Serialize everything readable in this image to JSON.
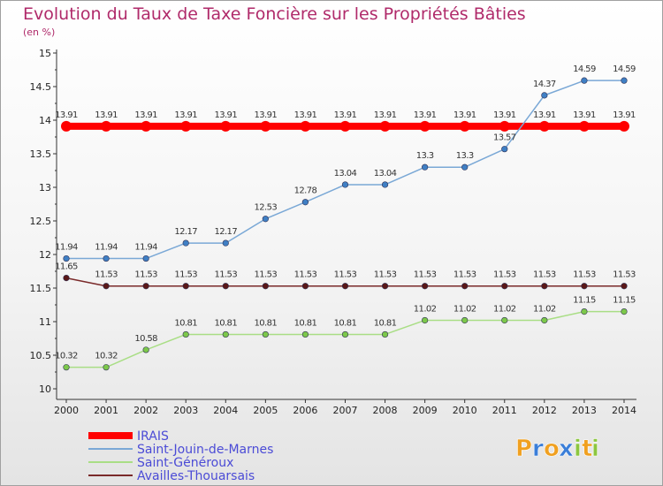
{
  "chart_data": {
    "type": "line",
    "title": "Evolution du Taux de Taxe Foncière sur les Propriétés Bâties",
    "subtitle": "(en %)",
    "x": [
      "2000",
      "2001",
      "2002",
      "2003",
      "2004",
      "2005",
      "2006",
      "2007",
      "2008",
      "2009",
      "2010",
      "2011",
      "2012",
      "2013",
      "2014"
    ],
    "yticks": [
      "10",
      "10.5",
      "11",
      "11.5",
      "12",
      "12.5",
      "13",
      "13.5",
      "14",
      "14.5",
      "15"
    ],
    "ylim": [
      10,
      15
    ],
    "grid": false,
    "legend_position": "bottom-left",
    "series": [
      {
        "name": "IRAIS",
        "color": "#ff0000",
        "width": 8,
        "point_color": "#ff0000",
        "values": [
          13.91,
          13.91,
          13.91,
          13.91,
          13.91,
          13.91,
          13.91,
          13.91,
          13.91,
          13.91,
          13.91,
          13.91,
          13.91,
          13.91,
          13.91
        ],
        "labels": [
          "13.91",
          "13.91",
          "13.91",
          "13.91",
          "13.91",
          "13.91",
          "13.91",
          "13.91",
          "13.91",
          "13.91",
          "13.91",
          "13.91",
          "13.91",
          "13.91",
          "13.91"
        ]
      },
      {
        "name": "Saint-Jouin-de-Marnes",
        "color": "#7aa8d6",
        "width": 1.5,
        "point_color": "#3f7fc4",
        "values": [
          11.94,
          11.94,
          11.94,
          12.17,
          12.17,
          12.53,
          12.78,
          13.04,
          13.04,
          13.3,
          13.3,
          13.57,
          14.37,
          14.59,
          14.59
        ],
        "labels": [
          "11.94",
          "11.94",
          "11.94",
          "12.17",
          "12.17",
          "12.53",
          "12.78",
          "13.04",
          "13.04",
          "13.3",
          "13.3",
          "13.57",
          "14.37",
          "14.59",
          "14.59"
        ]
      },
      {
        "name": "Saint-Généroux",
        "color": "#a9de85",
        "width": 1.5,
        "point_color": "#7cc84a",
        "values": [
          10.32,
          10.32,
          10.58,
          10.81,
          10.81,
          10.81,
          10.81,
          10.81,
          10.81,
          11.02,
          11.02,
          11.02,
          11.02,
          11.15,
          11.15
        ],
        "labels": [
          "10.32",
          "10.32",
          "10.58",
          "10.81",
          "10.81",
          "10.81",
          "10.81",
          "10.81",
          "10.81",
          "11.02",
          "11.02",
          "11.02",
          "11.02",
          "11.15",
          "11.15"
        ]
      },
      {
        "name": "Availles-Thouarsais",
        "color": "#7a2a2a",
        "width": 1.5,
        "point_color": "#5a1818",
        "values": [
          11.65,
          11.53,
          11.53,
          11.53,
          11.53,
          11.53,
          11.53,
          11.53,
          11.53,
          11.53,
          11.53,
          11.53,
          11.53,
          11.53,
          11.53
        ],
        "labels": [
          "11.65",
          "11.53",
          "11.53",
          "11.53",
          "11.53",
          "11.53",
          "11.53",
          "11.53",
          "11.53",
          "11.53",
          "11.53",
          "11.53",
          "11.53",
          "11.53",
          "11.53"
        ]
      }
    ]
  },
  "logo": {
    "letters": [
      "P",
      "r",
      "o",
      "x",
      "i",
      "t",
      "i"
    ],
    "colors": [
      "#f0a020",
      "#3a7ed8",
      "#f0a020",
      "#3a7ed8",
      "#8cc63f",
      "#f0a020",
      "#8cc63f"
    ]
  }
}
